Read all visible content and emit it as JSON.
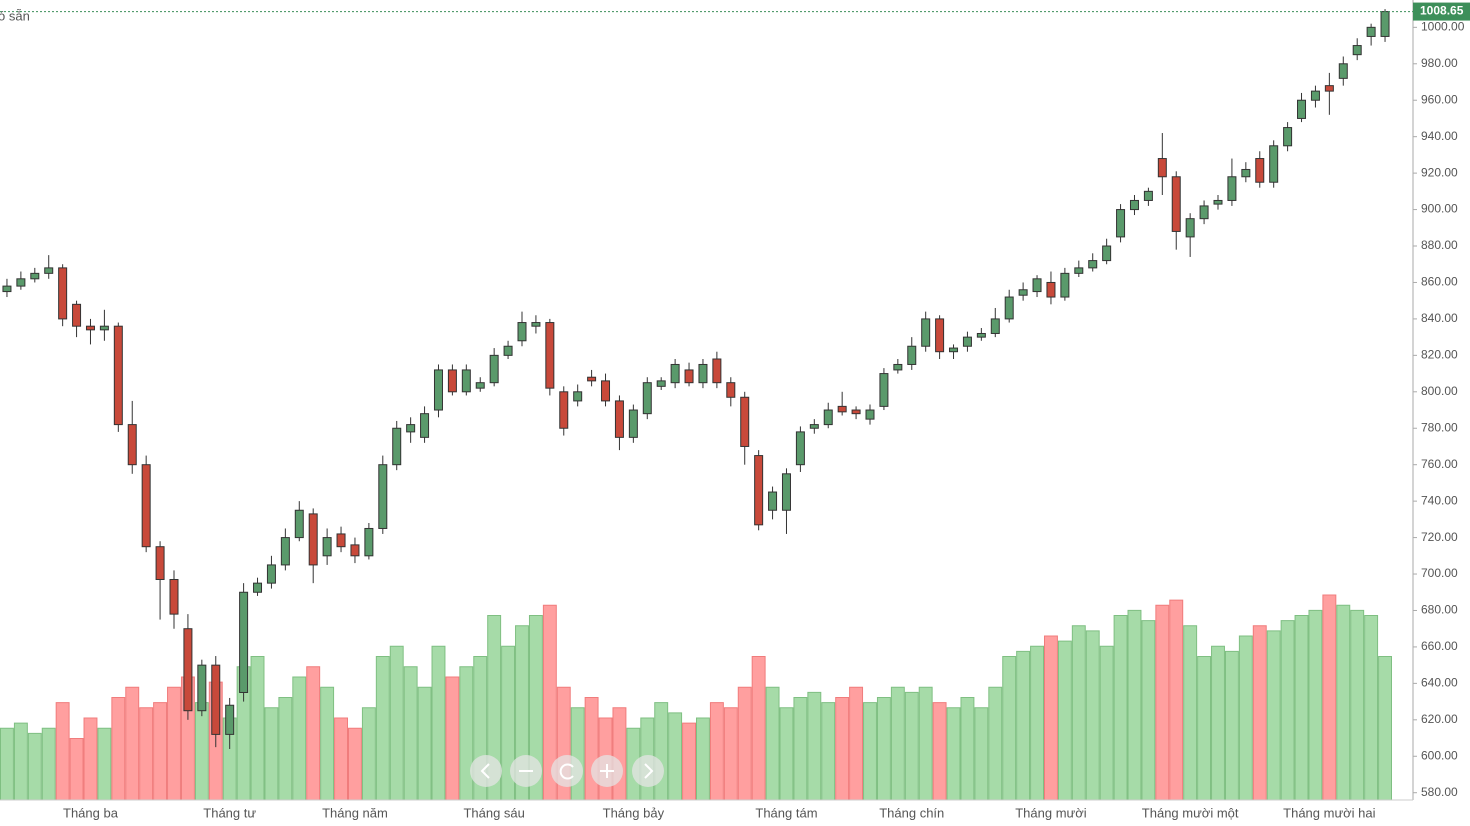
{
  "chart_data": {
    "type": "candlestick",
    "corner_text": "ó sẵn",
    "categories": [
      null,
      null,
      null,
      null,
      null,
      null,
      "Tháng ba",
      null,
      null,
      null,
      null,
      null,
      null,
      null,
      null,
      null,
      "Tháng tư",
      null,
      null,
      null,
      null,
      null,
      null,
      null,
      null,
      "Tháng năm",
      null,
      null,
      null,
      null,
      null,
      null,
      null,
      null,
      null,
      "Tháng sáu",
      null,
      null,
      null,
      null,
      null,
      null,
      null,
      null,
      null,
      "Tháng bảy",
      null,
      null,
      null,
      null,
      null,
      null,
      null,
      null,
      null,
      null,
      "Tháng tám",
      null,
      null,
      null,
      null,
      null,
      null,
      null,
      null,
      "Tháng chín",
      null,
      null,
      null,
      null,
      null,
      null,
      null,
      null,
      null,
      "Tháng mười",
      null,
      null,
      null,
      null,
      null,
      null,
      null,
      null,
      null,
      "Tháng mười một",
      null,
      null,
      null,
      null,
      null,
      null,
      null,
      null,
      null,
      "Tháng mười hai",
      null,
      null,
      null,
      null
    ],
    "open": [
      855,
      858,
      862,
      865,
      868,
      848,
      836,
      834,
      836,
      782,
      760,
      715,
      697,
      670,
      625,
      650,
      612,
      635,
      690,
      695,
      705,
      720,
      733,
      710,
      722,
      716,
      710,
      725,
      760,
      778,
      775,
      790,
      812,
      800,
      802,
      805,
      820,
      828,
      836,
      838,
      800,
      795,
      808,
      806,
      795,
      775,
      788,
      803,
      805,
      812,
      805,
      818,
      805,
      797,
      765,
      735,
      735,
      760,
      780,
      782,
      792,
      790,
      785,
      792,
      812,
      815,
      825,
      840,
      822,
      825,
      830,
      832,
      840,
      853,
      855,
      860,
      852,
      865,
      868,
      872,
      885,
      900,
      905,
      928,
      918,
      885,
      895,
      903,
      905,
      918,
      928,
      915,
      935,
      950,
      960,
      968,
      972,
      985,
      995,
      995
    ],
    "high": [
      862,
      866,
      868,
      875,
      870,
      850,
      840,
      845,
      838,
      795,
      765,
      718,
      702,
      678,
      653,
      655,
      632,
      695,
      698,
      710,
      725,
      740,
      736,
      725,
      726,
      720,
      728,
      765,
      784,
      786,
      792,
      815,
      815,
      815,
      808,
      824,
      828,
      844,
      842,
      840,
      803,
      804,
      812,
      810,
      798,
      793,
      808,
      808,
      818,
      816,
      818,
      822,
      808,
      800,
      768,
      748,
      758,
      781,
      785,
      794,
      800,
      792,
      793,
      813,
      818,
      830,
      844,
      842,
      826,
      833,
      835,
      846,
      856,
      860,
      864,
      866,
      868,
      872,
      876,
      884,
      903,
      908,
      912,
      942,
      921,
      898,
      905,
      908,
      928,
      926,
      932,
      938,
      948,
      964,
      968,
      975,
      984,
      994,
      1002,
      1010
    ],
    "low": [
      852,
      856,
      860,
      862,
      836,
      830,
      826,
      828,
      778,
      755,
      712,
      675,
      670,
      620,
      622,
      605,
      604,
      630,
      688,
      692,
      702,
      718,
      695,
      705,
      712,
      706,
      708,
      722,
      757,
      772,
      772,
      786,
      798,
      798,
      800,
      803,
      818,
      825,
      832,
      798,
      776,
      792,
      803,
      792,
      768,
      772,
      785,
      801,
      802,
      803,
      802,
      802,
      792,
      760,
      724,
      730,
      722,
      756,
      777,
      780,
      787,
      785,
      782,
      790,
      810,
      812,
      822,
      818,
      818,
      822,
      828,
      830,
      838,
      850,
      852,
      848,
      850,
      863,
      866,
      870,
      882,
      897,
      902,
      908,
      878,
      874,
      892,
      900,
      902,
      915,
      912,
      912,
      932,
      948,
      956,
      952,
      968,
      982,
      990,
      992
    ],
    "close": [
      858,
      862,
      865,
      868,
      840,
      836,
      834,
      836,
      782,
      760,
      715,
      697,
      678,
      625,
      650,
      612,
      628,
      690,
      695,
      705,
      720,
      735,
      705,
      720,
      715,
      710,
      725,
      760,
      780,
      782,
      788,
      812,
      800,
      812,
      805,
      820,
      825,
      838,
      838,
      802,
      780,
      800,
      806,
      795,
      775,
      790,
      805,
      806,
      815,
      805,
      815,
      805,
      797,
      770,
      727,
      745,
      755,
      778,
      782,
      790,
      789,
      788,
      790,
      810,
      815,
      825,
      840,
      822,
      824,
      830,
      832,
      840,
      852,
      856,
      862,
      852,
      865,
      868,
      872,
      880,
      900,
      905,
      910,
      918,
      888,
      895,
      902,
      905,
      918,
      922,
      915,
      935,
      945,
      960,
      965,
      965,
      980,
      990,
      1000,
      1008.65
    ],
    "volume": [
      70,
      75,
      65,
      70,
      95,
      60,
      80,
      70,
      100,
      110,
      90,
      95,
      110,
      120,
      95,
      115,
      80,
      130,
      140,
      90,
      100,
      120,
      130,
      110,
      80,
      70,
      90,
      140,
      150,
      130,
      110,
      150,
      120,
      130,
      140,
      180,
      150,
      170,
      180,
      190,
      110,
      90,
      100,
      80,
      90,
      70,
      80,
      95,
      85,
      75,
      80,
      95,
      90,
      110,
      140,
      110,
      90,
      100,
      105,
      95,
      100,
      110,
      95,
      100,
      110,
      105,
      110,
      95,
      90,
      100,
      90,
      110,
      140,
      145,
      150,
      160,
      155,
      170,
      165,
      150,
      180,
      185,
      175,
      190,
      195,
      170,
      140,
      150,
      145,
      160,
      170,
      165,
      175,
      180,
      185,
      200,
      190,
      185,
      180,
      140
    ],
    "up_color": "#5a9a6b",
    "down_color": "#c8493a",
    "volume_up_color": "#a6dba8",
    "volume_down_color": "#ff9f9f",
    "ylim": [
      576,
      1015
    ],
    "yticks": [
      {
        "value": 580,
        "label": "580.00"
      },
      {
        "value": 600,
        "label": "600.00"
      },
      {
        "value": 620,
        "label": "620.00"
      },
      {
        "value": 640,
        "label": "640.00"
      },
      {
        "value": 660,
        "label": "660.00"
      },
      {
        "value": 680,
        "label": "680.00"
      },
      {
        "value": 700,
        "label": "700.00"
      },
      {
        "value": 720,
        "label": "720.00"
      },
      {
        "value": 740,
        "label": "740.00"
      },
      {
        "value": 760,
        "label": "760.00"
      },
      {
        "value": 780,
        "label": "780.00"
      },
      {
        "value": 800,
        "label": "800.00"
      },
      {
        "value": 820,
        "label": "820.00"
      },
      {
        "value": 840,
        "label": "840.00"
      },
      {
        "value": 860,
        "label": "860.00"
      },
      {
        "value": 880,
        "label": "880.00"
      },
      {
        "value": 900,
        "label": "900.00"
      },
      {
        "value": 920,
        "label": "920.00"
      },
      {
        "value": 940,
        "label": "940.00"
      },
      {
        "value": 960,
        "label": "960.00"
      },
      {
        "value": 980,
        "label": "980.00"
      },
      {
        "value": 1000,
        "label": "1000.00"
      }
    ],
    "grid": false
  }
}
